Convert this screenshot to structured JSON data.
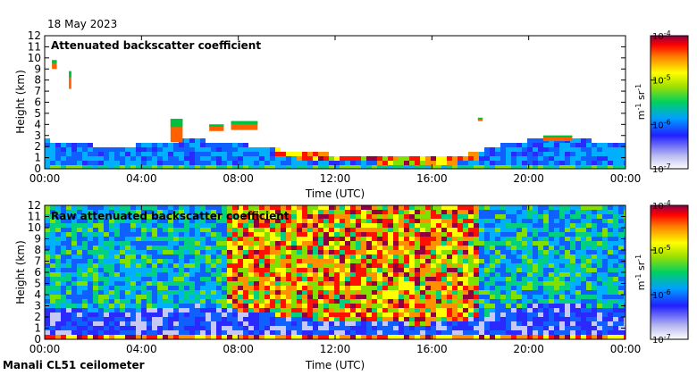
{
  "date": "18 May 2023",
  "footer": "Manali CL51 ceilometer",
  "chart_data": [
    {
      "type": "heatmap",
      "title": "Attenuated backscatter coefficient",
      "xlabel": "Time (UTC)",
      "ylabel": "Height (km)",
      "xticks": [
        "00:00",
        "04:00",
        "08:00",
        "12:00",
        "16:00",
        "20:00",
        "00:00"
      ],
      "yticks": [
        0,
        1,
        2,
        3,
        4,
        5,
        6,
        7,
        8,
        9,
        10,
        11,
        12
      ],
      "xlim_hours": [
        0,
        24
      ],
      "ylim_km": [
        0,
        12
      ],
      "colorbar": {
        "label_base": "m",
        "label_exp1": "-1",
        "label_mid": " sr",
        "label_exp2": "-1",
        "ticks": [
          {
            "base": "10",
            "exp": "-4"
          },
          {
            "base": "10",
            "exp": "-5"
          },
          {
            "base": "10",
            "exp": "-6"
          },
          {
            "base": "10",
            "exp": "-7"
          }
        ],
        "range_log10": [
          -7,
          -4
        ]
      },
      "boundary_layer_top_km": [
        [
          0,
          2.6
        ],
        [
          1,
          2.4
        ],
        [
          2,
          2.1
        ],
        [
          3,
          2.0
        ],
        [
          4,
          2.2
        ],
        [
          5,
          2.4
        ],
        [
          6,
          2.7
        ],
        [
          7,
          2.4
        ],
        [
          8,
          2.2
        ],
        [
          9,
          2.0
        ],
        [
          10,
          1.6
        ],
        [
          11,
          1.4
        ],
        [
          12,
          1.3
        ],
        [
          13,
          1.2
        ],
        [
          14,
          1.1
        ],
        [
          15,
          1.0
        ],
        [
          16,
          1.0
        ],
        [
          17,
          1.1
        ],
        [
          18,
          1.6
        ],
        [
          19,
          2.2
        ],
        [
          20,
          2.6
        ],
        [
          21,
          2.9
        ],
        [
          22,
          2.7
        ],
        [
          23,
          2.4
        ],
        [
          24,
          2.3
        ]
      ],
      "cloud_features": [
        {
          "t0": 0.3,
          "t1": 0.5,
          "h0": 9.0,
          "h1": 9.8
        },
        {
          "t0": 1.0,
          "t1": 1.1,
          "h0": 7.2,
          "h1": 8.8
        },
        {
          "t0": 5.2,
          "t1": 5.7,
          "h0": 2.4,
          "h1": 4.5
        },
        {
          "t0": 6.8,
          "t1": 7.4,
          "h0": 3.4,
          "h1": 4.0
        },
        {
          "t0": 7.7,
          "t1": 8.8,
          "h0": 3.5,
          "h1": 4.3
        },
        {
          "t0": 17.9,
          "t1": 18.1,
          "h0": 4.3,
          "h1": 4.6
        },
        {
          "t0": 20.6,
          "t1": 21.8,
          "h0": 2.5,
          "h1": 3.0
        }
      ]
    },
    {
      "type": "heatmap",
      "title": "Raw attenuated backscatter coefficient",
      "xlabel": "Time (UTC)",
      "ylabel": "Height (km)",
      "xticks": [
        "00:00",
        "04:00",
        "08:00",
        "12:00",
        "16:00",
        "20:00",
        "00:00"
      ],
      "yticks": [
        0,
        1,
        2,
        3,
        4,
        5,
        6,
        7,
        8,
        9,
        10,
        11,
        12
      ],
      "xlim_hours": [
        0,
        24
      ],
      "ylim_km": [
        0,
        12
      ],
      "colorbar": {
        "label_base": "m",
        "label_exp1": "-1",
        "label_mid": " sr",
        "label_exp2": "-1",
        "ticks": [
          {
            "base": "10",
            "exp": "-4"
          },
          {
            "base": "10",
            "exp": "-5"
          },
          {
            "base": "10",
            "exp": "-6"
          },
          {
            "base": "10",
            "exp": "-7"
          }
        ],
        "range_log10": [
          -7,
          -4
        ]
      },
      "noise_band_hours": [
        7.5,
        18.0
      ]
    }
  ]
}
